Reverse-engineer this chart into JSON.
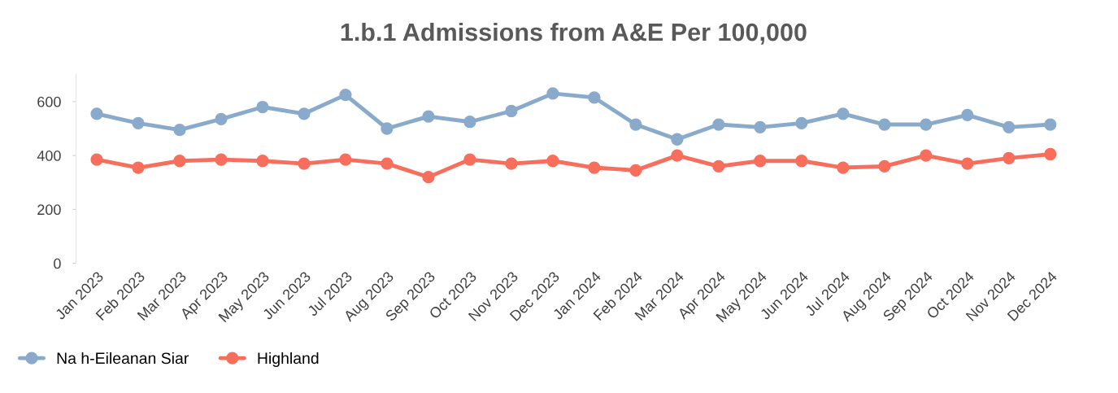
{
  "chart_data": {
    "type": "line",
    "title": "1.b.1 Admissions from A&E Per 100,000",
    "categories": [
      "Jan 2023",
      "Feb 2023",
      "Mar 2023",
      "Apr 2023",
      "May 2023",
      "Jun 2023",
      "Jul 2023",
      "Aug 2023",
      "Sep 2023",
      "Oct 2023",
      "Nov 2023",
      "Dec 2023",
      "Jan 2024",
      "Feb 2024",
      "Mar 2024",
      "Apr 2024",
      "May 2024",
      "Jun 2024",
      "Jul 2024",
      "Aug 2024",
      "Sep 2024",
      "Oct 2024",
      "Nov 2024",
      "Dec 2024"
    ],
    "series": [
      {
        "name": "Na h-Eileanan Siar",
        "color": "#8aaacb",
        "values": [
          555,
          520,
          495,
          535,
          580,
          555,
          625,
          500,
          545,
          525,
          565,
          630,
          615,
          515,
          460,
          515,
          505,
          520,
          555,
          515,
          515,
          550,
          505,
          515
        ]
      },
      {
        "name": "Highland",
        "color": "#f86e5c",
        "values": [
          385,
          355,
          380,
          385,
          380,
          370,
          385,
          370,
          320,
          385,
          370,
          380,
          355,
          345,
          400,
          360,
          380,
          380,
          355,
          360,
          400,
          370,
          390,
          405
        ]
      }
    ],
    "ylim": [
      0,
      700
    ],
    "yticks": [
      0,
      200,
      400,
      600
    ],
    "grid": false,
    "legend": "bottom left",
    "marker": "circle",
    "line_style": "solid"
  }
}
